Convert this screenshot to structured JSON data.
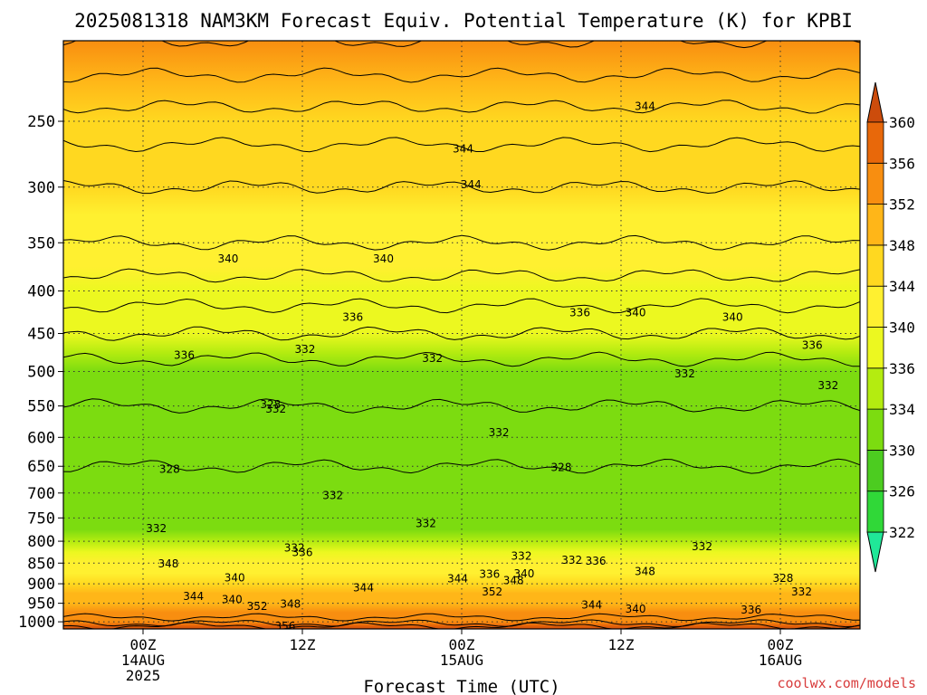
{
  "chart_data": {
    "type": "heatmap",
    "title": "2025081318 NAM3KM Forecast Equiv. Potential Temperature (K) for KPBI",
    "xlabel": "Forecast Time (UTC)",
    "ylabel": "",
    "y_scale": "log-pressure",
    "ylim": [
      1020,
      200
    ],
    "y_ticks": [
      250,
      300,
      350,
      400,
      450,
      500,
      550,
      600,
      650,
      700,
      750,
      800,
      850,
      900,
      950,
      1000
    ],
    "x_range_hours": [
      -6,
      54
    ],
    "x_ticks": [
      {
        "hour": 0,
        "lines": [
          "00Z",
          "14AUG",
          "2025"
        ]
      },
      {
        "hour": 12,
        "lines": [
          "12Z"
        ]
      },
      {
        "hour": 24,
        "lines": [
          "00Z",
          "15AUG"
        ]
      },
      {
        "hour": 36,
        "lines": [
          "12Z"
        ]
      },
      {
        "hour": 48,
        "lines": [
          "00Z",
          "16AUG"
        ]
      }
    ],
    "grid": true,
    "units": "K",
    "colorbar": {
      "position": "right",
      "levels": [
        322,
        326,
        330,
        334,
        336,
        340,
        344,
        348,
        352,
        356,
        360
      ],
      "colors": [
        "#20e898",
        "#30d838",
        "#4ccc20",
        "#7cdc10",
        "#b4ec10",
        "#ecf820",
        "#fff030",
        "#ffd820",
        "#ffb618",
        "#f88e10",
        "#e8680a",
        "#cc4c0c"
      ]
    },
    "profile": [
      {
        "p": 200,
        "value": 352
      },
      {
        "p": 250,
        "value": 347
      },
      {
        "p": 300,
        "value": 344
      },
      {
        "p": 350,
        "value": 342
      },
      {
        "p": 400,
        "value": 339
      },
      {
        "p": 450,
        "value": 336
      },
      {
        "p": 500,
        "value": 333
      },
      {
        "p": 550,
        "value": 332
      },
      {
        "p": 600,
        "value": 331
      },
      {
        "p": 650,
        "value": 330
      },
      {
        "p": 700,
        "value": 330
      },
      {
        "p": 750,
        "value": 331
      },
      {
        "p": 800,
        "value": 334
      },
      {
        "p": 850,
        "value": 340
      },
      {
        "p": 900,
        "value": 346
      },
      {
        "p": 950,
        "value": 351
      },
      {
        "p": 1000,
        "value": 355
      },
      {
        "p": 1020,
        "value": 360
      }
    ],
    "contour_labels": [
      {
        "text": "344",
        "hour": 24.7,
        "p": 298
      },
      {
        "text": "344",
        "hour": 24.1,
        "p": 270
      },
      {
        "text": "344",
        "hour": 37.8,
        "p": 240
      },
      {
        "text": "340",
        "hour": 6.4,
        "p": 366
      },
      {
        "text": "340",
        "hour": 18.1,
        "p": 366
      },
      {
        "text": "340",
        "hour": 37.1,
        "p": 425
      },
      {
        "text": "340",
        "hour": 44.4,
        "p": 430
      },
      {
        "text": "336",
        "hour": 15.8,
        "p": 430
      },
      {
        "text": "336",
        "hour": 32.9,
        "p": 425
      },
      {
        "text": "336",
        "hour": 3.1,
        "p": 478
      },
      {
        "text": "336",
        "hour": 50.4,
        "p": 465
      },
      {
        "text": "332",
        "hour": 12.2,
        "p": 470
      },
      {
        "text": "332",
        "hour": 21.8,
        "p": 482
      },
      {
        "text": "332",
        "hour": 40.8,
        "p": 503
      },
      {
        "text": "332",
        "hour": 51.6,
        "p": 520
      },
      {
        "text": "332",
        "hour": 10.0,
        "p": 555
      },
      {
        "text": "332",
        "hour": 26.8,
        "p": 592
      },
      {
        "text": "328",
        "hour": 9.6,
        "p": 548
      },
      {
        "text": "328",
        "hour": 2.0,
        "p": 655
      },
      {
        "text": "328",
        "hour": 31.5,
        "p": 652
      },
      {
        "text": "332",
        "hour": 14.3,
        "p": 705
      },
      {
        "text": "332",
        "hour": 21.3,
        "p": 762
      },
      {
        "text": "332",
        "hour": 1.0,
        "p": 772
      },
      {
        "text": "332",
        "hour": 11.4,
        "p": 815
      },
      {
        "text": "336",
        "hour": 12.0,
        "p": 825
      },
      {
        "text": "332",
        "hour": 28.5,
        "p": 834
      },
      {
        "text": "332",
        "hour": 32.3,
        "p": 843
      },
      {
        "text": "336",
        "hour": 34.1,
        "p": 845
      },
      {
        "text": "332",
        "hour": 42.1,
        "p": 812
      },
      {
        "text": "348",
        "hour": 1.9,
        "p": 852
      },
      {
        "text": "340",
        "hour": 6.9,
        "p": 885
      },
      {
        "text": "344",
        "hour": 16.6,
        "p": 910
      },
      {
        "text": "344",
        "hour": 23.7,
        "p": 888
      },
      {
        "text": "336",
        "hour": 26.1,
        "p": 876
      },
      {
        "text": "340",
        "hour": 28.7,
        "p": 875
      },
      {
        "text": "348",
        "hour": 37.8,
        "p": 870
      },
      {
        "text": "348",
        "hour": 27.9,
        "p": 892
      },
      {
        "text": "352",
        "hour": 26.3,
        "p": 920
      },
      {
        "text": "344",
        "hour": 3.8,
        "p": 932
      },
      {
        "text": "340",
        "hour": 6.7,
        "p": 940
      },
      {
        "text": "352",
        "hour": 8.6,
        "p": 958
      },
      {
        "text": "348",
        "hour": 11.1,
        "p": 952
      },
      {
        "text": "344",
        "hour": 33.8,
        "p": 955
      },
      {
        "text": "340",
        "hour": 37.1,
        "p": 965
      },
      {
        "text": "336",
        "hour": 45.8,
        "p": 968
      },
      {
        "text": "328",
        "hour": 48.2,
        "p": 886
      },
      {
        "text": "332",
        "hour": 49.6,
        "p": 920
      },
      {
        "text": "356",
        "hour": 10.7,
        "p": 1012
      }
    ]
  },
  "credit": "coolwx.com/models"
}
